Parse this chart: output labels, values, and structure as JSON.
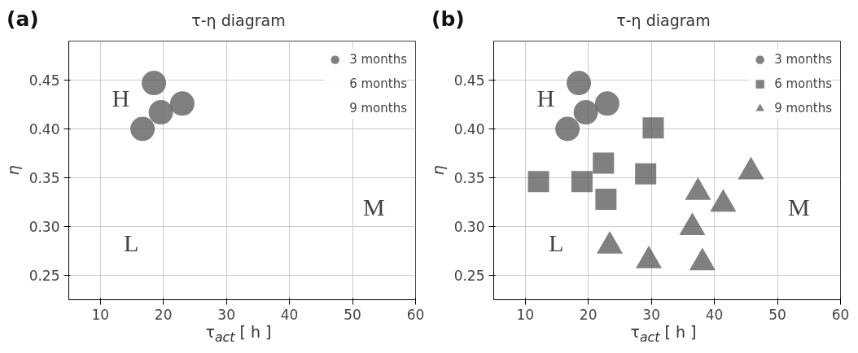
{
  "chart_data": [
    {
      "type": "scatter",
      "title": "τ-η diagram",
      "xlabel": "τ$_{act}$ [ h ]",
      "ylabel": "η",
      "xlim": [
        5,
        60
      ],
      "xticks": [
        10,
        20,
        30,
        40,
        50,
        60
      ],
      "ylim": [
        0.225,
        0.49
      ],
      "yticks": [
        {
          "value": 0.25,
          "label": "0.25"
        },
        {
          "value": 0.3,
          "label": "0.30"
        },
        {
          "value": 0.35,
          "label": "0.35"
        },
        {
          "value": 0.4,
          "label": "0.40"
        },
        {
          "value": 0.45,
          "label": "0.45"
        }
      ],
      "grid": true,
      "legend": "top right",
      "annotations": [
        "(a)",
        "H",
        "L",
        "M"
      ],
      "series": [
        {
          "name": "3 months",
          "color": "#555555",
          "marker": "circle",
          "x": [
            18.5,
            23.0,
            19.6,
            16.7
          ],
          "values": [
            0.447,
            0.426,
            0.417,
            0.4
          ]
        },
        {
          "name": "6 months",
          "color": "#555555",
          "marker": "square"
        },
        {
          "name": "9 months",
          "color": "#555555",
          "marker": "triangle"
        }
      ]
    },
    {
      "type": "scatter",
      "title": "τ-η diagram",
      "xlabel": "τ$_{act}$ [ h ]",
      "ylabel": "η",
      "xlim": [
        5,
        60
      ],
      "xticks": [
        10,
        20,
        30,
        40,
        50,
        60
      ],
      "ylim": [
        0.225,
        0.49
      ],
      "yticks": [
        {
          "value": 0.25,
          "label": "0.25"
        },
        {
          "value": 0.3,
          "label": "0.30"
        },
        {
          "value": 0.35,
          "label": "0.35"
        },
        {
          "value": 0.4,
          "label": "0.40"
        },
        {
          "value": 0.45,
          "label": "0.45"
        }
      ],
      "grid": true,
      "legend": "top right",
      "annotations": [
        "(b)",
        "H",
        "L",
        "M"
      ],
      "series": [
        {
          "name": "3 months",
          "color": "#555555",
          "marker": "circle",
          "x": [
            18.5,
            23.0,
            19.6,
            16.7
          ],
          "values": [
            0.447,
            0.426,
            0.417,
            0.4
          ]
        },
        {
          "name": "6 months",
          "color": "#555555",
          "marker": "square",
          "x": [
            30.3,
            22.4,
            29.1,
            12.1,
            19.0,
            22.8
          ],
          "values": [
            0.401,
            0.365,
            0.354,
            0.346,
            0.346,
            0.328
          ]
        },
        {
          "name": "9 months",
          "color": "#555555",
          "marker": "triangle",
          "x": [
            45.8,
            37.4,
            41.4,
            36.5,
            23.4,
            29.6,
            38.1
          ],
          "values": [
            0.356,
            0.335,
            0.323,
            0.299,
            0.28,
            0.265,
            0.263
          ]
        }
      ]
    }
  ]
}
